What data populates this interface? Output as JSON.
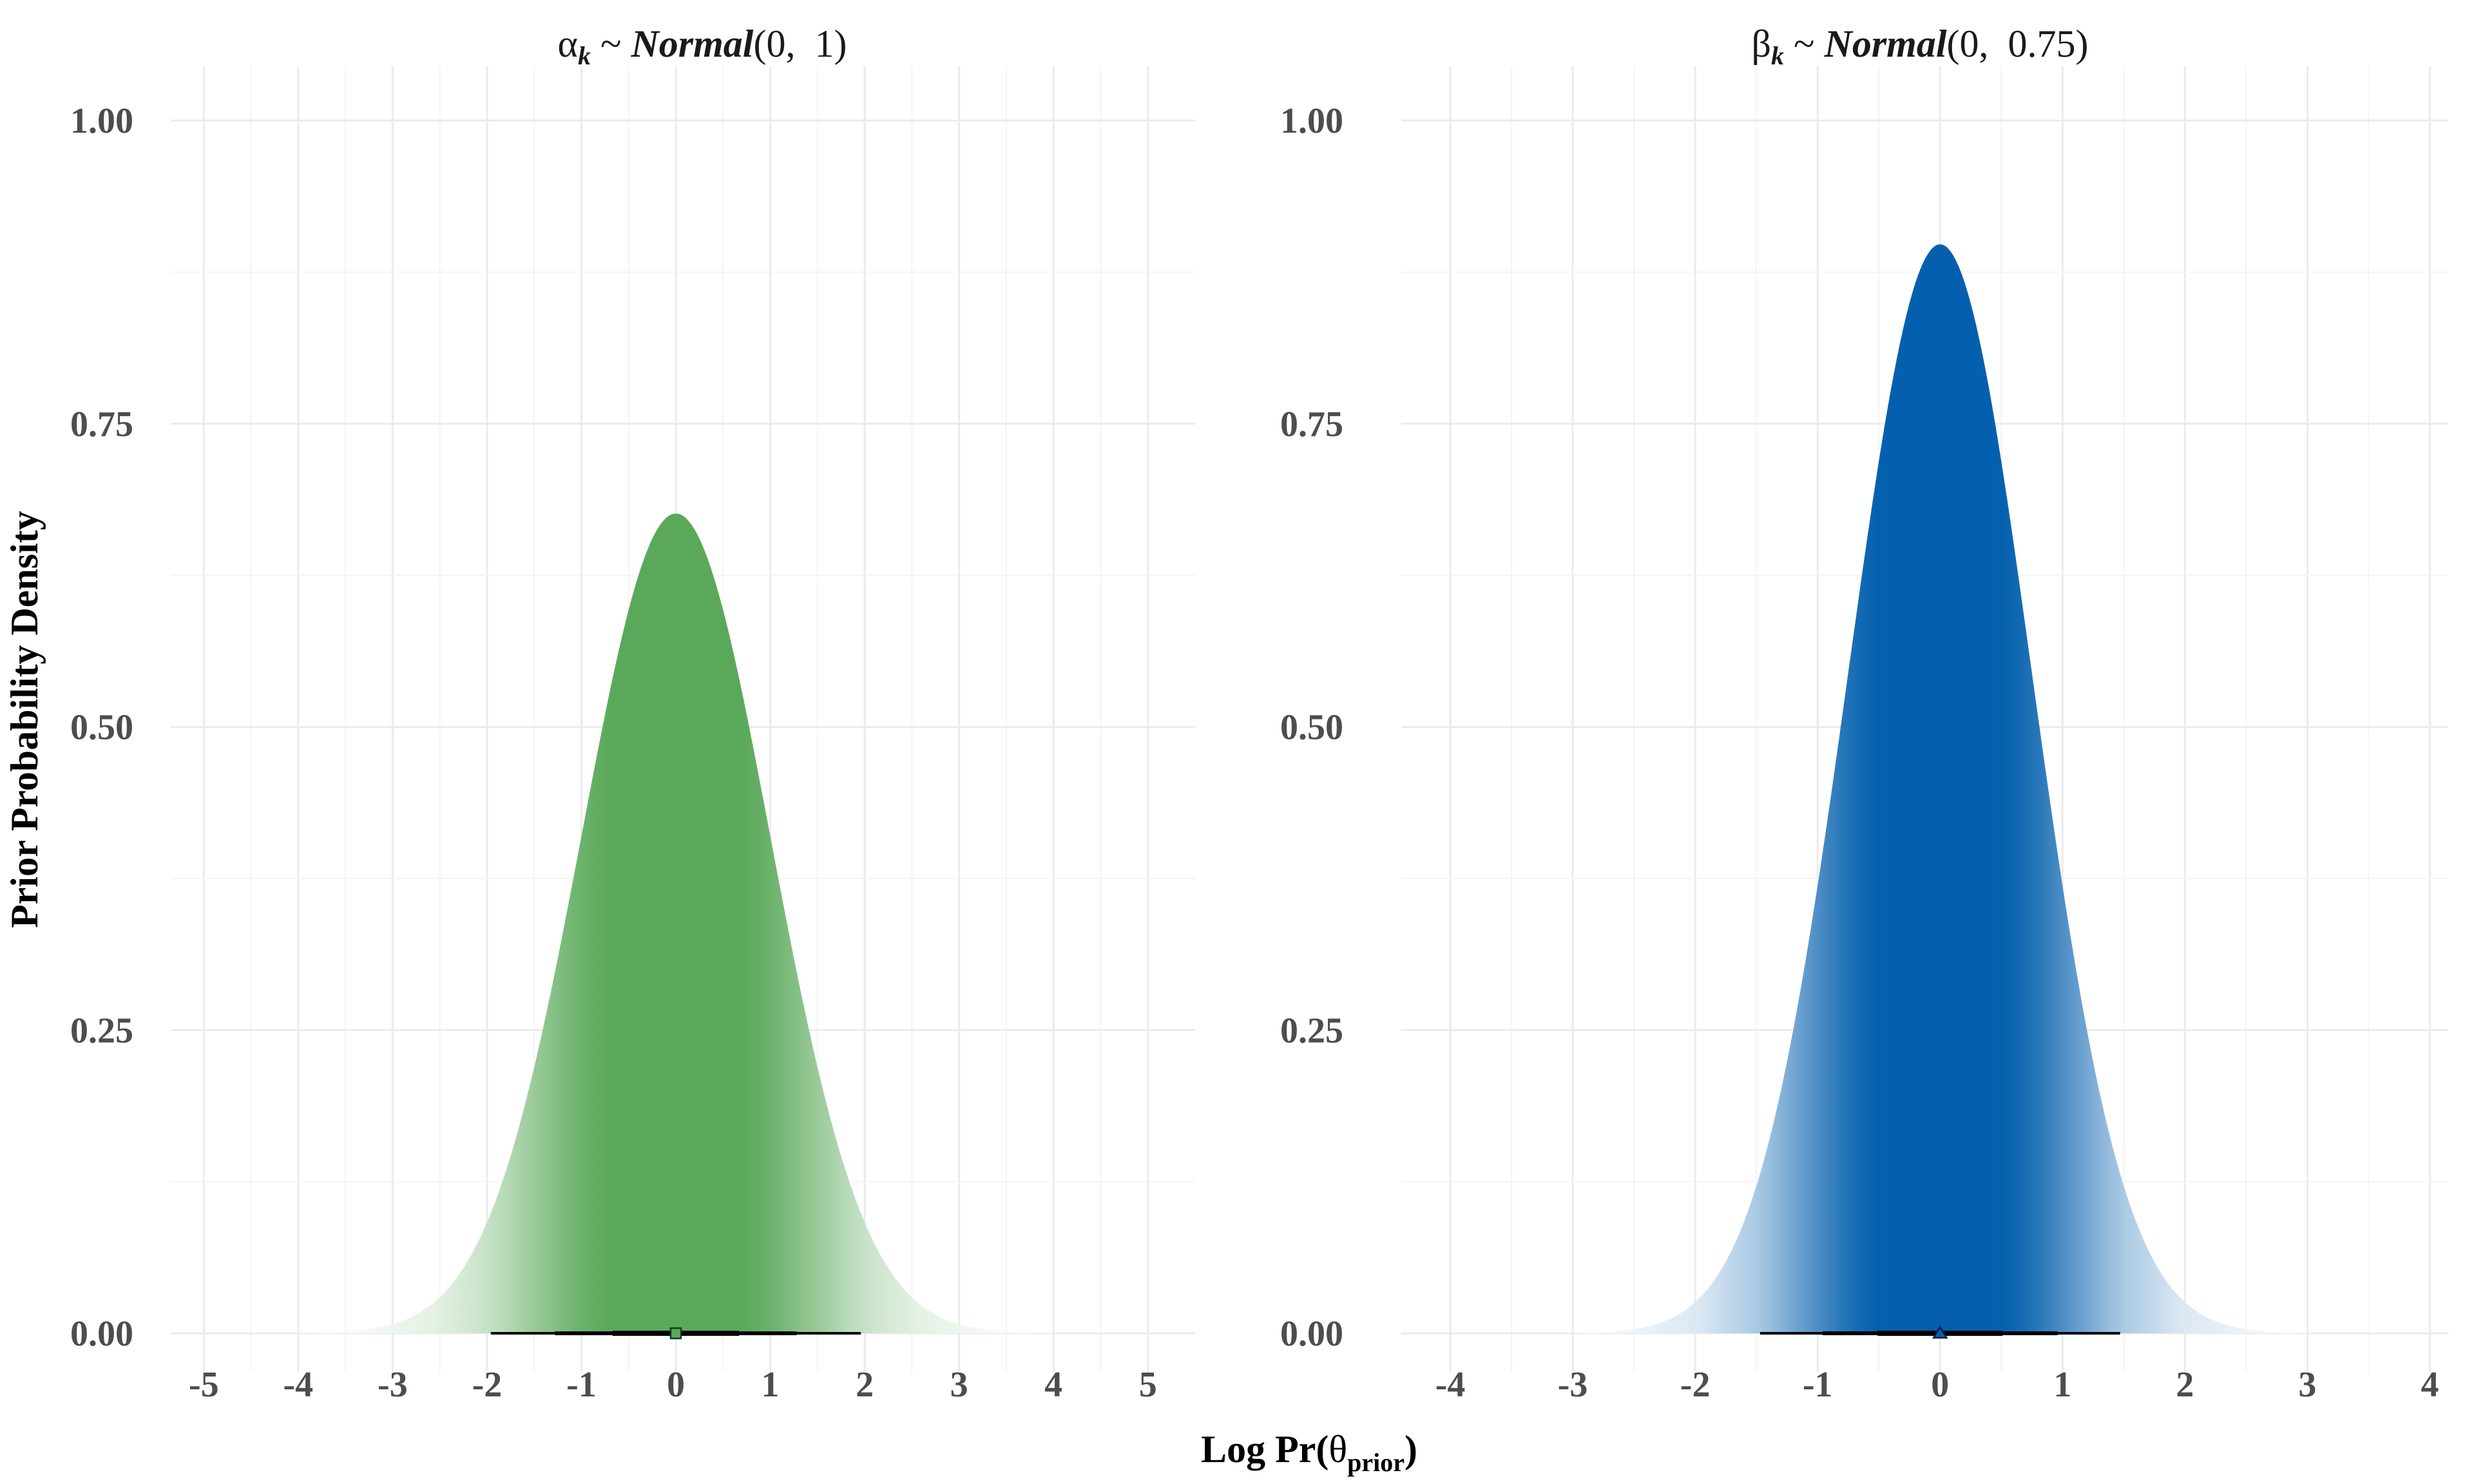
{
  "figure": {
    "ylabel": "Prior Probability Density",
    "xlabel": {
      "main": "Log Pr(",
      "symbol": "θ",
      "subscript": "prior",
      "close": ")"
    }
  },
  "chart_data": [
    {
      "type": "area",
      "title": {
        "symbol": "α",
        "subscript": "k",
        "tilde": " ~ ",
        "dist": "Normal",
        "open": "(0,  1",
        "close": ")"
      },
      "distribution": {
        "family": "Normal",
        "mean": 0,
        "sd": 1
      },
      "xlim": [
        -5.35,
        5.5
      ],
      "ylim": [
        0,
        1.05
      ],
      "xticks": [
        -5,
        -4,
        -3,
        -2,
        -1,
        0,
        1,
        2,
        3,
        4,
        5
      ],
      "xtick_labels": [
        "-5",
        "-4",
        "-3",
        "-2",
        "-1",
        "0",
        "1",
        "2",
        "3",
        "4",
        "5"
      ],
      "yticks": [
        0,
        0.25,
        0.5,
        0.75,
        1
      ],
      "ytick_labels": [
        "0.00",
        "0.25",
        "0.50",
        "0.75",
        "1.00"
      ],
      "grid": true,
      "color": "#5aa95a",
      "peak_density": 0.676,
      "point_estimate": {
        "value": 0,
        "shape": "square"
      },
      "intervals": [
        {
          "level": 0.5,
          "lower": -0.67,
          "upper": 0.67
        },
        {
          "level": 0.8,
          "lower": -1.28,
          "upper": 1.28
        },
        {
          "level": 0.95,
          "lower": -1.96,
          "upper": 1.96
        }
      ]
    },
    {
      "type": "area",
      "title": {
        "symbol": "β",
        "subscript": "k",
        "tilde": " ~ ",
        "dist": "Normal",
        "open": "(0,  0.75",
        "close": ")"
      },
      "distribution": {
        "family": "Normal",
        "mean": 0,
        "sd": 0.75
      },
      "xlim": [
        -4.4,
        4.15
      ],
      "ylim": [
        0,
        1.05
      ],
      "xticks": [
        -4,
        -3,
        -2,
        -1,
        0,
        1,
        2,
        3,
        4
      ],
      "xtick_labels": [
        "-4",
        "-3",
        "-2",
        "-1",
        "0",
        "1",
        "2",
        "3",
        "4"
      ],
      "yticks": [
        0,
        0.25,
        0.5,
        0.75,
        1
      ],
      "ytick_labels": [
        "0.00",
        "0.25",
        "0.50",
        "0.75",
        "1.00"
      ],
      "grid": true,
      "color": "#0460ae",
      "peak_density": 0.898,
      "point_estimate": {
        "value": 0,
        "shape": "triangle"
      },
      "intervals": [
        {
          "level": 0.5,
          "lower": -0.51,
          "upper": 0.51
        },
        {
          "level": 0.8,
          "lower": -0.96,
          "upper": 0.96
        },
        {
          "level": 0.95,
          "lower": -1.47,
          "upper": 1.47
        }
      ]
    }
  ]
}
